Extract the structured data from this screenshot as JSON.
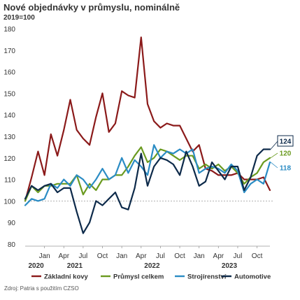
{
  "chart_data": {
    "type": "line",
    "title": "Nové objednávky v průmyslu, nominálně",
    "subtitle": "2019=100",
    "source": "Zdroj: Patria s použitím CZSO",
    "xlabel": "",
    "ylabel": "",
    "ylim": [
      80,
      180
    ],
    "y_ticks": [
      "80",
      "90",
      "100",
      "110",
      "120",
      "130",
      "140",
      "150",
      "160",
      "170",
      "180"
    ],
    "reference_line": 100,
    "grid": false,
    "legend_position": "bottom",
    "x_ticks": [
      {
        "label": "Jan",
        "year": "2020",
        "index": 3
      },
      {
        "label": "Apr",
        "year": "",
        "index": 6
      },
      {
        "label": "Jul",
        "year": "2021",
        "index": 9
      },
      {
        "label": "Oct",
        "year": "",
        "index": 12
      },
      {
        "label": "Jan",
        "year": "",
        "index": 15
      },
      {
        "label": "Apr",
        "year": "",
        "index": 18
      },
      {
        "label": "Jul",
        "year": "2022",
        "index": 21
      },
      {
        "label": "Oct",
        "year": "",
        "index": 24
      },
      {
        "label": "Jan",
        "year": "",
        "index": 27
      },
      {
        "label": "Apr",
        "year": "",
        "index": 30
      },
      {
        "label": "Jul",
        "year": "2023",
        "index": 33
      },
      {
        "label": "Oct",
        "year": "",
        "index": 36
      }
    ],
    "x_count": 39,
    "series": [
      {
        "name": "Základní kovy",
        "color": "#8b1a1a",
        "values": [
          100,
          111,
          123,
          112,
          131,
          121,
          133,
          147,
          133,
          129,
          126,
          139,
          150,
          132,
          136,
          151,
          149,
          148,
          176,
          145,
          137,
          134,
          136,
          135,
          135,
          129,
          123,
          126,
          115,
          114,
          112,
          112,
          112,
          113,
          110,
          110,
          110,
          111,
          105
        ],
        "end_label": ""
      },
      {
        "name": "Průmysl celkem",
        "color": "#6a9a1f",
        "values": [
          100,
          107,
          104,
          107,
          107,
          108,
          108,
          108,
          112,
          103,
          108,
          105,
          110,
          110,
          112,
          112,
          116,
          121,
          125,
          118,
          120,
          124,
          123,
          121,
          119,
          121,
          121,
          115,
          117,
          115,
          117,
          114,
          116,
          113,
          108,
          111,
          113,
          118,
          120
        ],
        "end_label": "120"
      },
      {
        "name": "Strojírenství",
        "color": "#2b8cc4",
        "values": [
          98,
          101,
          100,
          101,
          108,
          106,
          110,
          107,
          112,
          110,
          106,
          110,
          115,
          110,
          112,
          120,
          113,
          119,
          116,
          112,
          126,
          120,
          123,
          122,
          124,
          122,
          124,
          113,
          115,
          116,
          115,
          113,
          117,
          114,
          104,
          108,
          110,
          108,
          118
        ],
        "end_label": "118"
      },
      {
        "name": "Automotive",
        "color": "#0d2a4a",
        "values": [
          101,
          107,
          105,
          107,
          108,
          104,
          106,
          106,
          95,
          85,
          90,
          100,
          98,
          101,
          104,
          97,
          96,
          106,
          122,
          107,
          116,
          120,
          119,
          117,
          112,
          123,
          116,
          107,
          109,
          118,
          114,
          110,
          116,
          116,
          105,
          111,
          121,
          124,
          124
        ],
        "end_label": "124"
      }
    ]
  }
}
